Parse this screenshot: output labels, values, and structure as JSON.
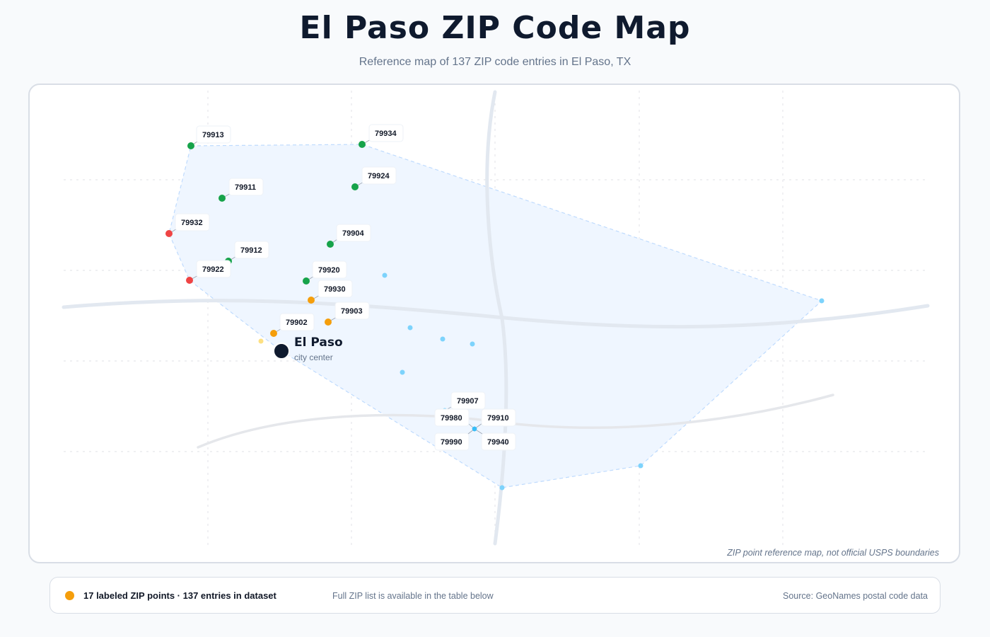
{
  "header": {
    "title": "El Paso ZIP Code Map",
    "subtitle": "Reference map of 137 ZIP code entries in El Paso, TX"
  },
  "map": {
    "note": "ZIP point reference map, not official USPS boundaries",
    "city": {
      "name": "El Paso",
      "sublabel": "city center"
    },
    "colors": {
      "green": "#16a34a",
      "red": "#ef4444",
      "orange": "#f59e0b",
      "light_blue": "#7dd3fc",
      "city": "#0f1a2e",
      "area_fill": "#eff6ff",
      "area_stroke": "#bfdbfe",
      "roads": "#e2e8f0"
    },
    "labeled_zips": [
      {
        "zip": "79913",
        "color": "green"
      },
      {
        "zip": "79934",
        "color": "green"
      },
      {
        "zip": "79911",
        "color": "green"
      },
      {
        "zip": "79924",
        "color": "green"
      },
      {
        "zip": "79932",
        "color": "red"
      },
      {
        "zip": "79904",
        "color": "green"
      },
      {
        "zip": "79912",
        "color": "green"
      },
      {
        "zip": "79922",
        "color": "red"
      },
      {
        "zip": "79920",
        "color": "green"
      },
      {
        "zip": "79930",
        "color": "orange"
      },
      {
        "zip": "79903",
        "color": "orange"
      },
      {
        "zip": "79902",
        "color": "orange"
      },
      {
        "zip": "79907",
        "color": "light_blue"
      },
      {
        "zip": "79980",
        "color": "light_blue"
      },
      {
        "zip": "79910",
        "color": "light_blue"
      },
      {
        "zip": "79990",
        "color": "light_blue"
      },
      {
        "zip": "79940",
        "color": "light_blue"
      }
    ]
  },
  "footer": {
    "legend_color": "#f59e0b",
    "legend_text": "17 labeled ZIP points · 137 entries in dataset",
    "middle_text": "Full ZIP list is available in the table below",
    "source": "Source: GeoNames postal code data"
  }
}
